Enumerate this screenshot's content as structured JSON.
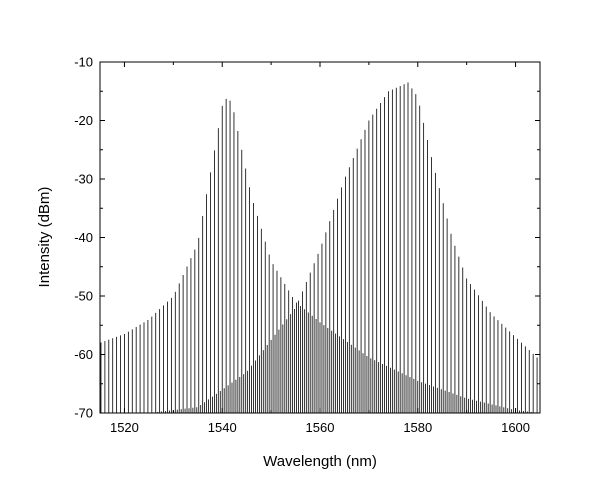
{
  "chart_data": {
    "type": "line",
    "xlabel": "Wavelength (nm)",
    "ylabel": "Intensity (dBm)",
    "xlim": [
      1515,
      1605
    ],
    "ylim": [
      -70,
      -10
    ],
    "x_ticks": [
      1520,
      1540,
      1560,
      1580,
      1600
    ],
    "y_ticks": [
      -70,
      -60,
      -50,
      -40,
      -30,
      -20,
      -10
    ],
    "x_tick_labels": [
      "1520",
      "1540",
      "1560",
      "1580",
      "1600"
    ],
    "y_tick_labels": [
      "-70",
      "-60",
      "-50",
      "-40",
      "-30",
      "-20",
      "-10"
    ],
    "grid": false,
    "line_color": "#000000",
    "series": [
      {
        "line_spacing_nm": 0.8,
        "envelope": {
          "x": [
            1515,
            1520,
            1525,
            1530,
            1535,
            1538,
            1540,
            1541,
            1542,
            1544,
            1546,
            1550,
            1555,
            1560,
            1565,
            1570,
            1575,
            1580,
            1585,
            1590,
            1595,
            1600,
            1605
          ],
          "y": [
            -58,
            -56.5,
            -54,
            -50,
            -41,
            -27,
            -17.5,
            -16,
            -17,
            -25,
            -33,
            -44,
            -51,
            -54.5,
            -57.5,
            -60.5,
            -62.5,
            -64.5,
            -66,
            -67.5,
            -68.5,
            -69.5,
            -70
          ]
        }
      },
      {
        "line_spacing_nm": 0.8,
        "envelope": {
          "x": [
            1515,
            1525,
            1535,
            1545,
            1550,
            1555,
            1560,
            1565,
            1570,
            1574,
            1578,
            1580,
            1583,
            1587,
            1590,
            1595,
            1600,
            1605
          ],
          "y": [
            -70,
            -70,
            -69,
            -63,
            -57.5,
            -52,
            -42,
            -30,
            -20,
            -15,
            -13.5,
            -16,
            -27,
            -40,
            -47,
            -53,
            -57,
            -61
          ]
        }
      }
    ]
  }
}
